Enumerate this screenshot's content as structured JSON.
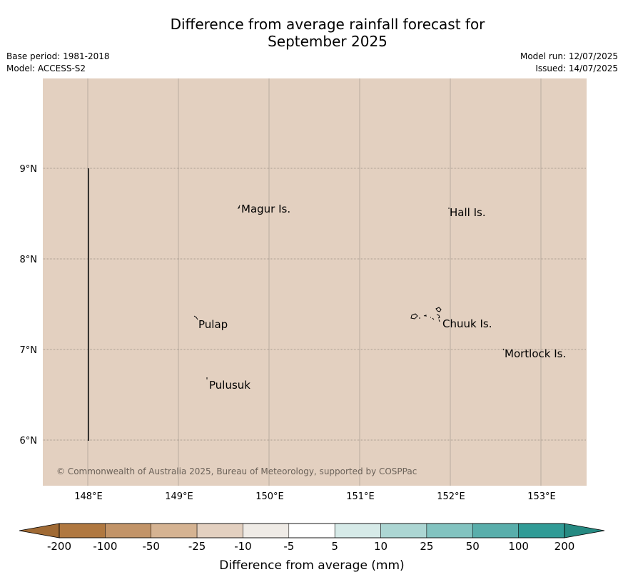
{
  "header": {
    "title_line1": "Difference from average rainfall forecast for",
    "title_line2": "September 2025",
    "base_period": "Base period: 1981-2018",
    "model": "Model: ACCESS-S2",
    "model_run": "Model run: 12/07/2025",
    "issued": "Issued: 14/07/2025"
  },
  "map": {
    "background_color": "#e3d0c0",
    "lon_ticks": [
      "148°E",
      "149°E",
      "150°E",
      "151°E",
      "152°E",
      "153°E"
    ],
    "lat_ticks": [
      "9°N",
      "8°N",
      "7°N",
      "6°N"
    ],
    "places": [
      {
        "name": "Magur Is."
      },
      {
        "name": "Hall Is."
      },
      {
        "name": "Pulap"
      },
      {
        "name": "Chuuk Is."
      },
      {
        "name": "Mortlock Is."
      },
      {
        "name": "Pulusuk"
      }
    ],
    "copyright": "© Commonwealth of Australia 2025, Bureau of Meteorology, supported by COSPPac"
  },
  "colorbar": {
    "title": "Difference from average (mm)",
    "labels": [
      "-200",
      "-100",
      "-50",
      "-25",
      "-10",
      "-5",
      "5",
      "10",
      "25",
      "50",
      "100",
      "200"
    ],
    "low_extend_color": "#a06a34",
    "high_extend_color": "#268a82",
    "colors": [
      "#b07840",
      "#c29468",
      "#d5b392",
      "#e3d0c0",
      "#efebe6",
      "#ffffff",
      "#d6eae8",
      "#acd6d3",
      "#82c3c0",
      "#59aeab",
      "#309b96"
    ]
  }
}
